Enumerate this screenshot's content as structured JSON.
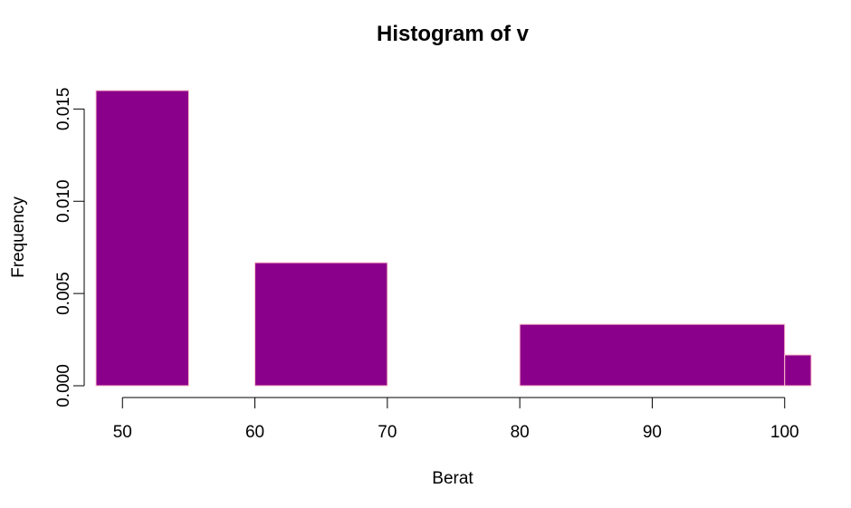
{
  "chart_data": {
    "type": "bar",
    "title": "Histogram of v",
    "xlabel": "Berat",
    "ylabel": "Frequency",
    "bins": [
      {
        "x0": 48,
        "x1": 55,
        "value": 0.016
      },
      {
        "x0": 55,
        "x1": 60,
        "value": 0
      },
      {
        "x0": 60,
        "x1": 70,
        "value": 0.00667
      },
      {
        "x0": 70,
        "x1": 80,
        "value": 0
      },
      {
        "x0": 80,
        "x1": 100,
        "value": 0.00333
      },
      {
        "x0": 100,
        "x1": 102,
        "value": 0.00167
      }
    ],
    "xlim": [
      48,
      102
    ],
    "ylim": [
      0,
      0.016
    ],
    "x_ticks": [
      50,
      60,
      70,
      80,
      90,
      100
    ],
    "x_tick_labels": [
      "50",
      "60",
      "70",
      "80",
      "90",
      "100"
    ],
    "y_ticks": [
      0.0,
      0.005,
      0.01,
      0.015
    ],
    "y_tick_labels": [
      "0.000",
      "0.005",
      "0.010",
      "0.015"
    ],
    "colors": {
      "bar_fill": "#8B008B",
      "bar_border": "#FFC0CB"
    },
    "grid": false,
    "legend": "none"
  }
}
